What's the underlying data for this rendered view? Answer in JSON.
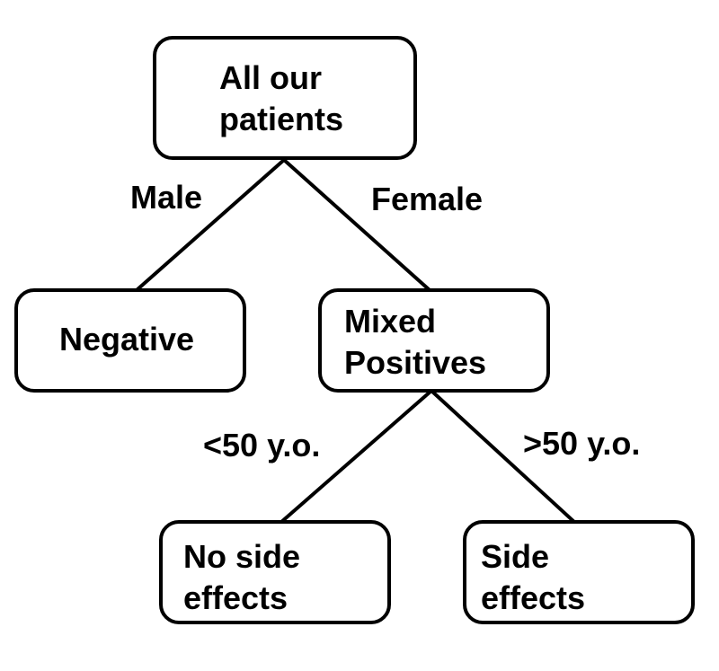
{
  "nodes": {
    "root": {
      "text": "All our\npatients"
    },
    "negative": {
      "text": "Negative"
    },
    "mixed": {
      "text": "Mixed\nPositives"
    },
    "no_side": {
      "text": "No side\neffects"
    },
    "side": {
      "text": "Side\neffects"
    }
  },
  "edges": {
    "male": "Male",
    "female": "Female",
    "under50": "<50 y.o.",
    "over50": ">50 y.o."
  }
}
